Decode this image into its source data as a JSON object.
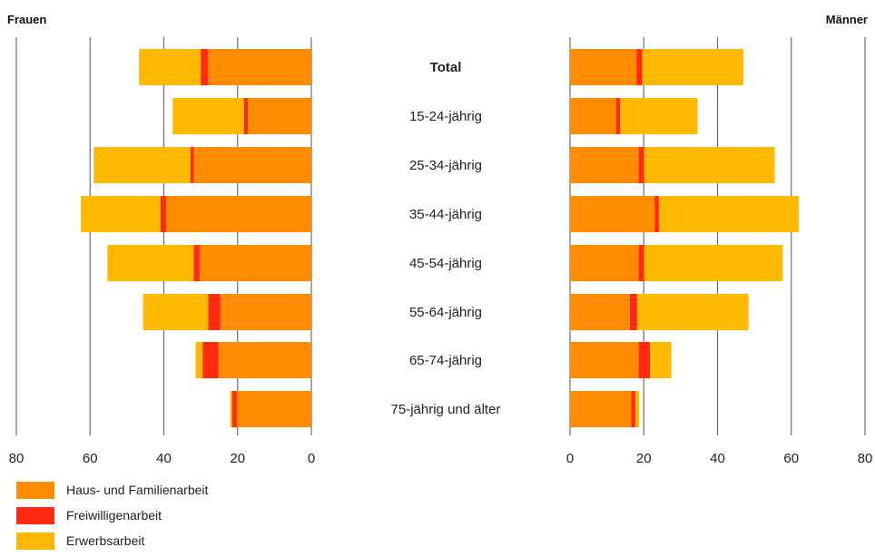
{
  "chart_data": {
    "type": "bar",
    "orientation": "horizontal-butterfly",
    "left_title": "Frauen",
    "right_title": "Männer",
    "categories": [
      "Total",
      "15-24-jährig",
      "25-34-jährig",
      "35-44-jährig",
      "45-54-jährig",
      "55-64-jährig",
      "65-74-jährig",
      "75-jährig und älter"
    ],
    "bold_categories": [
      "Total"
    ],
    "xlim": [
      0,
      80
    ],
    "x_ticks": [
      "0",
      "20",
      "40",
      "60",
      "80"
    ],
    "grid": true,
    "colors": {
      "Haus- und Familienarbeit": "#ff8c00",
      "Freiwilligenarbeit": "#ff2a12",
      "Erwerbsarbeit": "#ffb800"
    },
    "panels": [
      {
        "name": "Frauen",
        "series": [
          {
            "name": "Haus- und Familienarbeit",
            "values": [
              28,
              17.2,
              31.9,
              39.4,
              30.3,
              24.7,
              25.2,
              20.2
            ]
          },
          {
            "name": "Freiwilligenarbeit",
            "values": [
              2,
              1.1,
              0.9,
              1.5,
              1.6,
              3.3,
              4.3,
              1.3
            ]
          },
          {
            "name": "Erwerbsarbeit",
            "values": [
              16.7,
              19.3,
              26.2,
              21.6,
              23.4,
              17.6,
              1.9,
              0.5
            ]
          }
        ]
      },
      {
        "name": "Männer",
        "series": [
          {
            "name": "Haus- und Familienarbeit",
            "values": [
              18,
              12.5,
              18.6,
              23,
              18.6,
              16.2,
              18.6,
              16.6
            ]
          },
          {
            "name": "Freiwilligenarbeit",
            "values": [
              1.6,
              1.1,
              1.5,
              1.1,
              1.5,
              2,
              3.1,
              1.1
            ]
          },
          {
            "name": "Erwerbsarbeit",
            "values": [
              27.4,
              21,
              35.4,
              37.9,
              37.6,
              30.2,
              5.8,
              1.1
            ]
          }
        ]
      }
    ],
    "legend": {
      "placement": "bottom-left",
      "entries": [
        "Haus- und Familienarbeit",
        "Freiwilligenarbeit",
        "Erwerbsarbeit"
      ]
    }
  }
}
